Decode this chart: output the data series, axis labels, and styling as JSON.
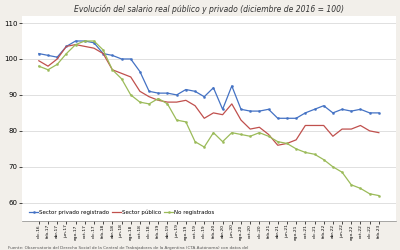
{
  "title": "Evolución del salario real público y privado (diciembre de 2016 = 100)",
  "title_fontsize": 5.5,
  "ylim": [
    55,
    112
  ],
  "yticks": [
    60,
    70,
    80,
    90,
    100,
    110
  ],
  "background_color": "#f2efea",
  "plot_bg": "#ffffff",
  "footnote": "Fuente: Observatorio del Derecho Social de la Central de Trabajadores de la Argentina (CTA Autónoma) con datos del",
  "series": {
    "privado": {
      "label": "Sector privado registrado",
      "color": "#4472c4",
      "marker": "o",
      "markersize": 1.5,
      "linewidth": 0.9
    },
    "publico": {
      "label": "Sector público",
      "color": "#c0504d",
      "marker": null,
      "markersize": 0,
      "linewidth": 0.9
    },
    "noregistrado": {
      "label": "No registrados",
      "color": "#9bbb59",
      "marker": "o",
      "markersize": 1.5,
      "linewidth": 0.9
    }
  },
  "x_labels": [
    "dic-16",
    "feb-17",
    "abr-17",
    "jun-17",
    "ago-17",
    "oct-17",
    "dic-17",
    "feb-18",
    "abr-18",
    "jun-18",
    "ago-18",
    "oct-18",
    "dic-18",
    "feb-19",
    "abr-19",
    "jun-19",
    "ago-19",
    "oct-19",
    "dic-19",
    "feb-20",
    "abr-20",
    "jun-20",
    "ago-20",
    "oct-20",
    "dic-20",
    "feb-21",
    "abr-21",
    "jun-21",
    "ago-21",
    "oct-21",
    "dic-21",
    "feb-22",
    "abr-22",
    "jun-22",
    "ago-22",
    "oct-22",
    "dic-22",
    "feb-23"
  ],
  "privado_values": [
    101.5,
    101.0,
    100.5,
    103.5,
    105.0,
    105.0,
    104.5,
    101.5,
    101.0,
    100.0,
    100.0,
    96.5,
    91.0,
    90.5,
    90.5,
    90.0,
    91.5,
    91.0,
    89.5,
    92.0,
    86.0,
    92.5,
    86.0,
    85.5,
    85.5,
    86.0,
    83.5,
    83.5,
    83.5,
    85.0,
    86.0,
    87.0,
    85.0,
    86.0,
    85.5,
    86.0,
    85.0,
    85.0
  ],
  "publico_values": [
    99.5,
    98.0,
    100.0,
    103.5,
    104.0,
    103.5,
    103.0,
    101.5,
    97.0,
    96.0,
    95.0,
    91.0,
    89.5,
    88.5,
    88.0,
    88.0,
    88.5,
    87.0,
    83.5,
    85.0,
    84.5,
    87.5,
    83.0,
    80.5,
    81.0,
    79.0,
    76.0,
    76.5,
    77.5,
    81.5,
    81.5,
    81.5,
    78.5,
    80.5,
    80.5,
    81.5,
    80.0,
    79.5
  ],
  "noregistrado_values": [
    98.0,
    97.0,
    98.5,
    101.5,
    104.0,
    105.0,
    105.0,
    102.5,
    97.0,
    94.5,
    90.0,
    88.0,
    87.5,
    89.0,
    87.5,
    83.0,
    82.5,
    77.0,
    75.5,
    79.5,
    77.0,
    79.5,
    79.0,
    78.5,
    79.5,
    78.5,
    77.0,
    76.5,
    75.0,
    74.0,
    73.5,
    72.0,
    70.0,
    68.5,
    65.0,
    64.0,
    62.5,
    62.0
  ]
}
